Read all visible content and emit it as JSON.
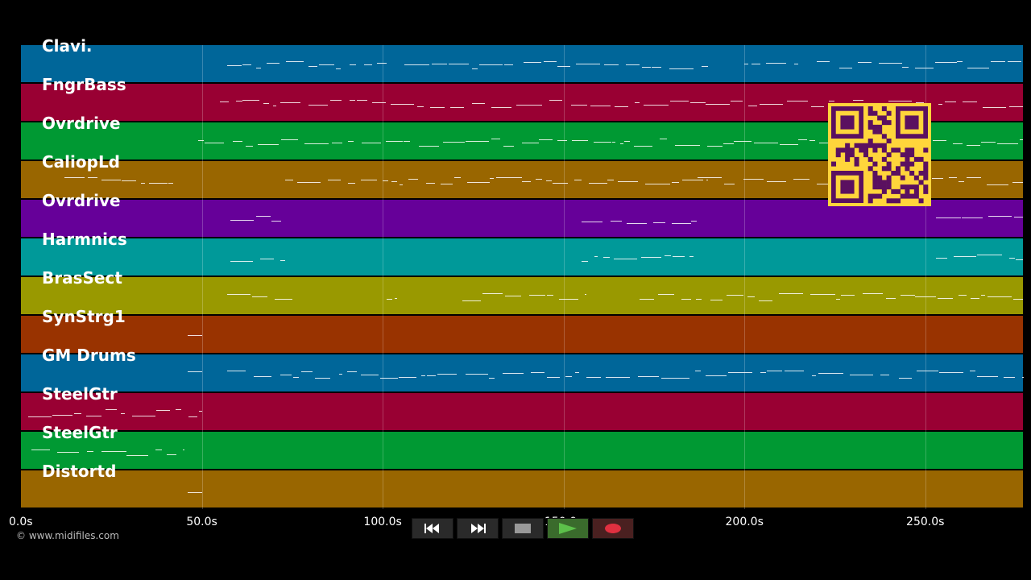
{
  "tracks": [
    {
      "label": "Clavi.",
      "color": "#006699"
    },
    {
      "label": "FngrBass",
      "color": "#990033"
    },
    {
      "label": "Ovrdrive",
      "color": "#009933"
    },
    {
      "label": "CaliopLd",
      "color": "#996600"
    },
    {
      "label": "Ovrdrive",
      "color": "#660099"
    },
    {
      "label": "Harmnics",
      "color": "#009999"
    },
    {
      "label": "BrasSect",
      "color": "#999900"
    },
    {
      "label": "SynStrg1",
      "color": "#993300"
    },
    {
      "label": "GM Drums",
      "color": "#006699"
    },
    {
      "label": "SteelGtr",
      "color": "#990033"
    },
    {
      "label": "SteelGtr",
      "color": "#009933"
    },
    {
      "label": "Distortd",
      "color": "#996600"
    }
  ],
  "timeline": {
    "max_seconds": 277,
    "ticks": [
      "0.0s",
      "50.0s",
      "100.0s",
      "150.0s",
      "200.0s",
      "250.0s"
    ],
    "tick_values": [
      0,
      50,
      100,
      150,
      200,
      250
    ]
  },
  "copyright": "© www.midifiles.com",
  "transport": {
    "rewind_icon": "rewind-icon",
    "fastforward_icon": "fast-forward-icon",
    "stop_icon": "stop-icon",
    "play_icon": "play-icon",
    "record_icon": "record-icon",
    "play_color": "#5cc04a",
    "record_color": "#e03040"
  },
  "qr_colors": {
    "background": "#ffd53b",
    "module": "#5a1060"
  }
}
